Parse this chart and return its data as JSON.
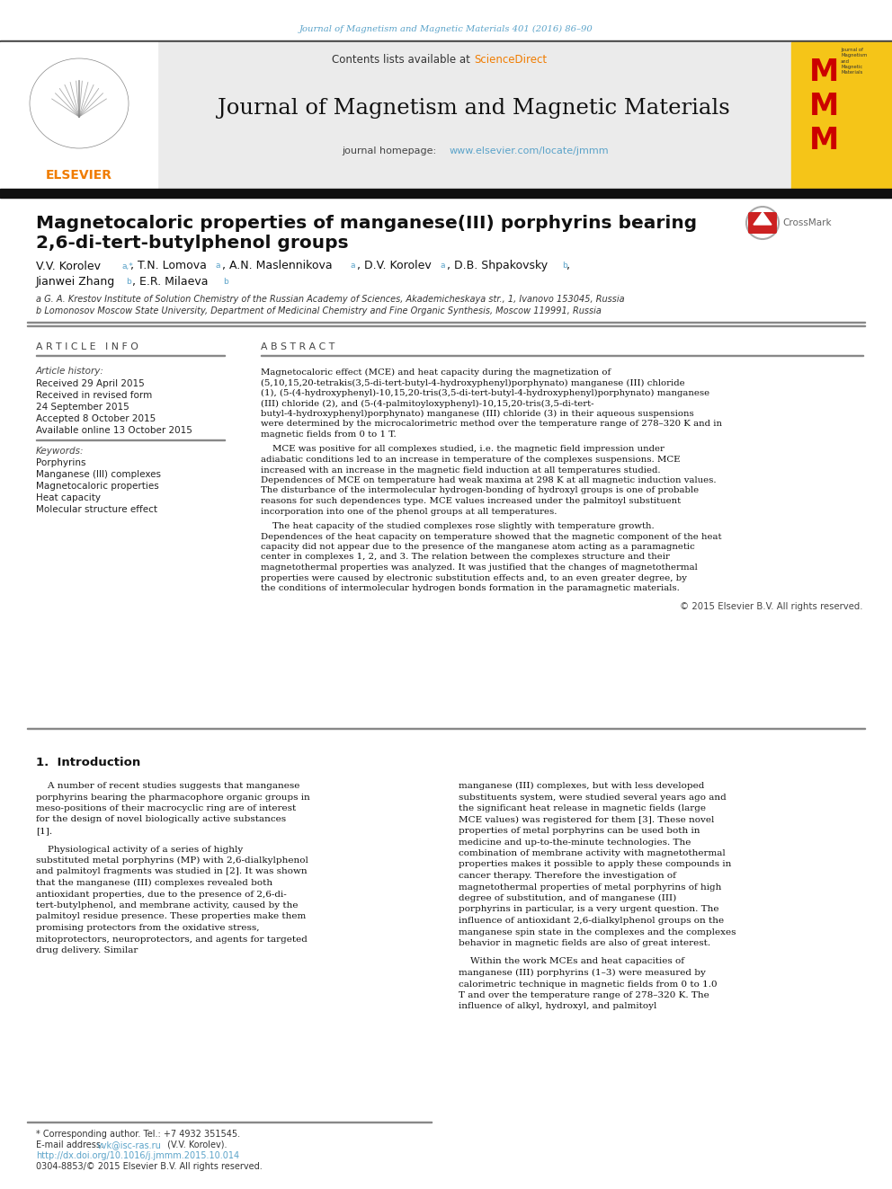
{
  "page_bg": "#ffffff",
  "top_journal_ref": "Journal of Magnetism and Magnetic Materials 401 (2016) 86–90",
  "top_journal_ref_color": "#5ba3c9",
  "header_bg": "#ebebeb",
  "header_sciencedirect_color": "#f07c00",
  "journal_title": "Journal of Magnetism and Magnetic Materials",
  "journal_homepage_url": "www.elsevier.com/locate/jmmm",
  "link_color": "#5ba3c9",
  "elsevier_orange": "#f07c00",
  "mmm_yellow": "#f5c518",
  "mmm_red": "#cc0000",
  "article_title_line1": "Magnetocaloric properties of manganese(III) porphyrins bearing",
  "article_title_line2": "2,6-di-tert-butylphenol groups",
  "affiliation_a": "a G. A. Krestov Institute of Solution Chemistry of the Russian Academy of Sciences, Akademicheskaya str., 1, Ivanovo 153045, Russia",
  "affiliation_b": "b Lomonosov Moscow State University, Department of Medicinal Chemistry and Fine Organic Synthesis, Moscow 119991, Russia",
  "keywords": [
    "Porphyrins",
    "Manganese (III) complexes",
    "Magnetocaloric properties",
    "Heat capacity",
    "Molecular structure effect"
  ],
  "abstract_text": "Magnetocaloric effect (MCE) and heat capacity during the magnetization of (5,10,15,20-tetrakis(3,5-di-tert-butyl-4-hydroxyphenyl)porphynato) manganese (III) chloride (1), (5-(4-hydroxyphenyl)-10,15,20-tris(3,5-di-tert-butyl-4-hydroxyphenyl)porphynato) manganese (III) chloride (2), and (5-(4-palmitoyloxyphenyl)-10,15,20-tris(3,5-di-tert-butyl-4-hydroxyphenyl)porphynato) manganese (III) chloride (3) in their aqueous suspensions were determined by the microcalorimetric method over the temperature range of 278–320 K and in magnetic fields from 0 to 1 T.",
  "abstract_para2": "MCE was positive for all complexes studied, i.e. the magnetic field impression under adiabatic conditions led to an increase in temperature of the complexes suspensions. MCE increased with an increase in the magnetic field induction at all temperatures studied. Dependences of MCE on temperature had weak maxima at 298 K at all magnetic induction values. The disturbance of the intermolecular hydrogen-bonding of hydroxyl groups is one of probable reasons for such dependences type. MCE values increased under the palmitoyl substituent incorporation into one of the phenol groups at all temperatures.",
  "abstract_para3": "The heat capacity of the studied complexes rose slightly with temperature growth. Dependences of the heat capacity on temperature showed that the magnetic component of the heat capacity did not appear due to the presence of the manganese atom acting as a paramagnetic center in complexes 1, 2, and 3. The relation between the complexes structure and their magnetothermal properties was analyzed. It was justified that the changes of magnetothermal properties were caused by electronic substitution effects and, to an even greater degree, by the conditions of intermolecular hydrogen bonds formation in the paramagnetic materials.",
  "copyright": "© 2015 Elsevier B.V. All rights reserved.",
  "section1_title": "1.  Introduction",
  "intro_para1": "    A number of recent studies suggests that manganese porphyrins bearing the pharmacophore organic groups in meso-positions of their macrocyclic ring are of interest for the design of novel biologically active substances [1].",
  "intro_para2": "    Physiological activity of a series of highly substituted metal porphyrins (MP) with 2,6-dialkylphenol and palmitoyl fragments was studied in [2]. It was shown that the manganese (III) complexes revealed both antioxidant properties, due to the presence of 2,6-di-tert-butylphenol, and membrane activity, caused by the palmitoyl residue presence. These properties make them promising protectors from the oxidative stress, mitoprotectors, neuroprotectors, and agents for targeted drug delivery. Similar",
  "intro_para3_right": "manganese (III) complexes, but with less developed substituents system, were studied several years ago and the significant heat release in magnetic fields (large MCE values) was registered for them [3]. These novel properties of metal porphyrins can be used both in medicine and up-to-the-minute technologies. The combination of membrane activity with magnetothermal properties makes it possible to apply these compounds in cancer therapy. Therefore the investigation of magnetothermal properties of metal porphyrins of high degree of substitution, and of manganese (III) porphyrins in particular, is a very urgent question. The influence of antioxidant 2,6-dialkylphenol groups on the manganese spin state in the complexes and the complexes behavior in magnetic fields are also of great interest.",
  "intro_para4_right": "    Within the work MCEs and heat capacities of manganese (III) porphyrins (1–3) were measured by calorimetric technique in magnetic fields from 0 to 1.0 T and over the temperature range of 278–320 K. The influence of alkyl, hydroxyl, and palmitoyl",
  "footnote_star": "* Corresponding author. Tel.: +7 4932 351545.",
  "footnote_email_label": "E-mail address: ",
  "footnote_email": "vvk@isc-ras.ru",
  "footnote_email_suffix": " (V.V. Korolev).",
  "footnote_doi": "http://dx.doi.org/10.1016/j.jmmm.2015.10.014",
  "footnote_issn": "0304-8853/© 2015 Elsevier B.V. All rights reserved."
}
